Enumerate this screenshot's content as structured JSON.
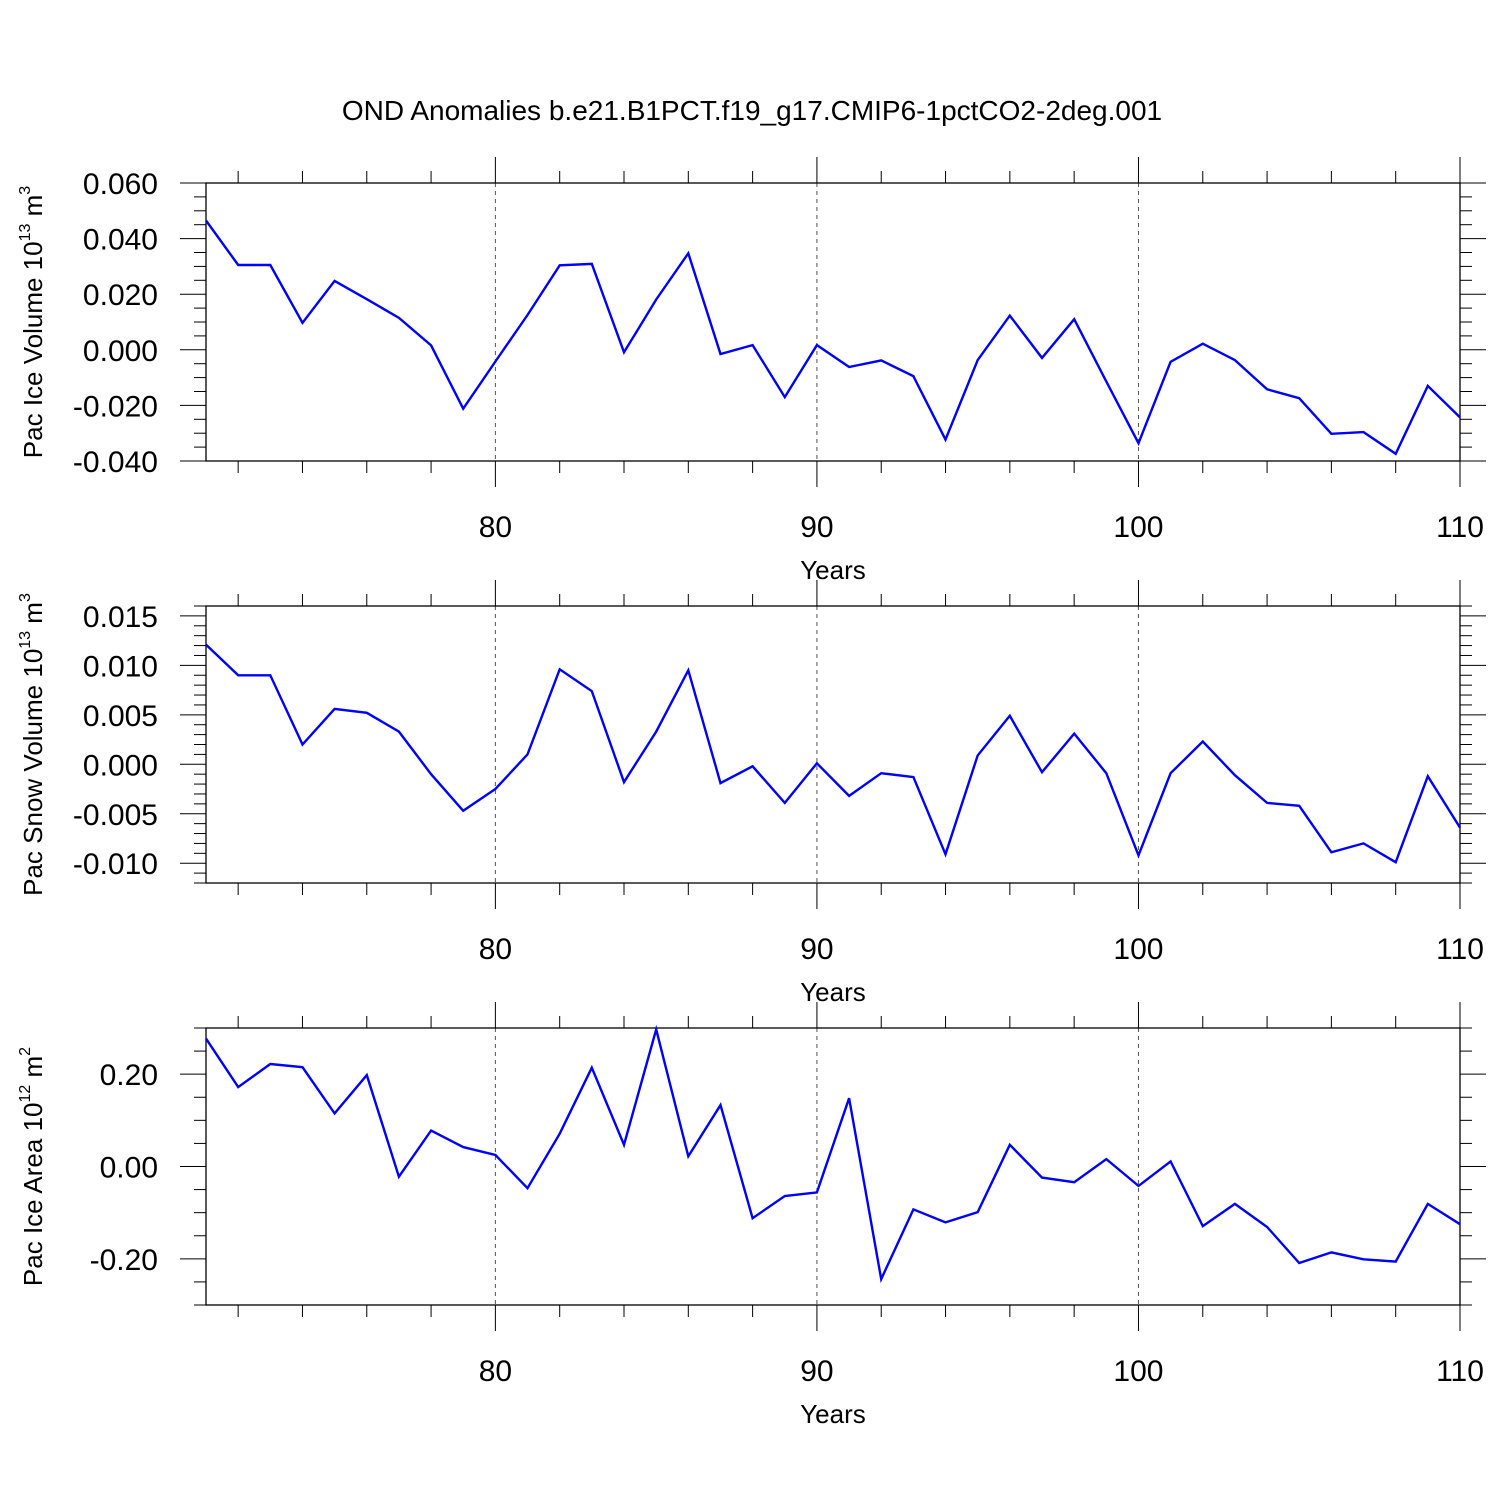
{
  "title": "OND Anomalies b.e21.B1PCT.f19_g17.CMIP6-1pctCO2-2deg.001",
  "style": {
    "line_color": "#0000ff",
    "grid_color": "#555555",
    "axis_color": "#000000"
  },
  "chart_data": [
    {
      "type": "line",
      "ylabel": {
        "prefix": "Pac Ice Volume 10",
        "exponent": "13",
        "unit": " m",
        "unit_exponent": "3"
      },
      "xlabel": "Years",
      "xlim": [
        71,
        110
      ],
      "ylim": [
        -0.04,
        0.06
      ],
      "yticks": [
        -0.04,
        -0.02,
        0.0,
        0.02,
        0.04,
        0.06
      ],
      "ytick_labels": [
        "-0.040",
        "-0.020",
        "0.000",
        "0.020",
        "0.040",
        "0.060"
      ],
      "yminor": 0.005,
      "xticks": [
        80,
        90,
        100,
        110
      ],
      "xtick_labels": [
        "80",
        "90",
        "100",
        "110"
      ],
      "xgrid": [
        80,
        90,
        100
      ],
      "x": [
        71,
        72,
        73,
        74,
        75,
        76,
        77,
        78,
        79,
        80,
        81,
        82,
        83,
        84,
        85,
        86,
        87,
        88,
        89,
        90,
        91,
        92,
        93,
        94,
        95,
        96,
        97,
        98,
        99,
        100,
        101,
        102,
        103,
        104,
        105,
        106,
        107,
        108,
        109,
        110
      ],
      "values": [
        0.0465,
        0.0305,
        0.0305,
        0.0097,
        0.0248,
        0.0182,
        0.0115,
        0.0016,
        -0.0212,
        -0.0042,
        0.0125,
        0.0304,
        0.0309,
        -0.0009,
        0.0181,
        0.0347,
        -0.0015,
        0.0017,
        -0.017,
        0.0017,
        -0.0062,
        -0.0038,
        -0.0095,
        -0.0323,
        -0.0037,
        0.0123,
        -0.0029,
        0.011,
        -0.0114,
        -0.0336,
        -0.0043,
        0.0022,
        -0.0037,
        -0.0142,
        -0.0174,
        -0.0302,
        -0.0296,
        -0.0374,
        -0.013,
        -0.0243
      ]
    },
    {
      "type": "line",
      "ylabel": {
        "prefix": "Pac Snow Volume 10",
        "exponent": "13",
        "unit": " m",
        "unit_exponent": "3"
      },
      "xlabel": "Years",
      "xlim": [
        71,
        110
      ],
      "ylim": [
        -0.012,
        0.016
      ],
      "yticks": [
        -0.01,
        -0.005,
        0.0,
        0.005,
        0.01,
        0.015
      ],
      "ytick_labels": [
        "-0.010",
        "-0.005",
        "0.000",
        "0.005",
        "0.010",
        "0.015"
      ],
      "yminor": 0.001,
      "xticks": [
        80,
        90,
        100,
        110
      ],
      "xtick_labels": [
        "80",
        "90",
        "100",
        "110"
      ],
      "xgrid": [
        80,
        90,
        100
      ],
      "x": [
        71,
        72,
        73,
        74,
        75,
        76,
        77,
        78,
        79,
        80,
        81,
        82,
        83,
        84,
        85,
        86,
        87,
        88,
        89,
        90,
        91,
        92,
        93,
        94,
        95,
        96,
        97,
        98,
        99,
        100,
        101,
        102,
        103,
        104,
        105,
        106,
        107,
        108,
        109,
        110
      ],
      "values": [
        0.0121,
        0.009,
        0.009,
        0.002,
        0.0056,
        0.0052,
        0.0033,
        -0.001,
        -0.0047,
        -0.0025,
        0.001,
        0.0096,
        0.0074,
        -0.0018,
        0.0033,
        0.0095,
        -0.0019,
        -0.0002,
        -0.0039,
        0.0001,
        -0.0032,
        -0.0009,
        -0.0013,
        -0.0091,
        0.0009,
        0.0049,
        -0.0008,
        0.0031,
        -0.0009,
        -0.0092,
        -0.0009,
        0.0023,
        -0.0011,
        -0.0039,
        -0.0042,
        -0.0089,
        -0.008,
        -0.0099,
        -0.0012,
        -0.0064
      ]
    },
    {
      "type": "line",
      "ylabel": {
        "prefix": "Pac Ice Area 10",
        "exponent": "12",
        "unit": " m",
        "unit_exponent": "2"
      },
      "xlabel": "Years",
      "xlim": [
        71,
        110
      ],
      "ylim": [
        -0.3,
        0.3
      ],
      "yticks": [
        -0.2,
        0.0,
        0.2
      ],
      "ytick_labels": [
        "-0.20",
        "0.00",
        "0.20"
      ],
      "yminor": 0.05,
      "xticks": [
        80,
        90,
        100,
        110
      ],
      "xtick_labels": [
        "80",
        "90",
        "100",
        "110"
      ],
      "xgrid": [
        80,
        90,
        100
      ],
      "x": [
        71,
        72,
        73,
        74,
        75,
        76,
        77,
        78,
        79,
        80,
        81,
        82,
        83,
        84,
        85,
        86,
        87,
        88,
        89,
        90,
        91,
        92,
        93,
        94,
        95,
        96,
        97,
        98,
        99,
        100,
        101,
        102,
        103,
        104,
        105,
        106,
        107,
        108,
        109,
        110
      ],
      "values": [
        0.277,
        0.172,
        0.222,
        0.215,
        0.115,
        0.198,
        -0.022,
        0.078,
        0.042,
        0.025,
        -0.047,
        0.071,
        0.214,
        0.047,
        0.297,
        0.022,
        0.133,
        -0.112,
        -0.064,
        -0.056,
        0.148,
        -0.244,
        -0.093,
        -0.121,
        -0.099,
        0.047,
        -0.024,
        -0.034,
        0.016,
        -0.042,
        0.011,
        -0.129,
        -0.081,
        -0.131,
        -0.209,
        -0.186,
        -0.201,
        -0.206,
        -0.081,
        -0.125
      ]
    }
  ]
}
